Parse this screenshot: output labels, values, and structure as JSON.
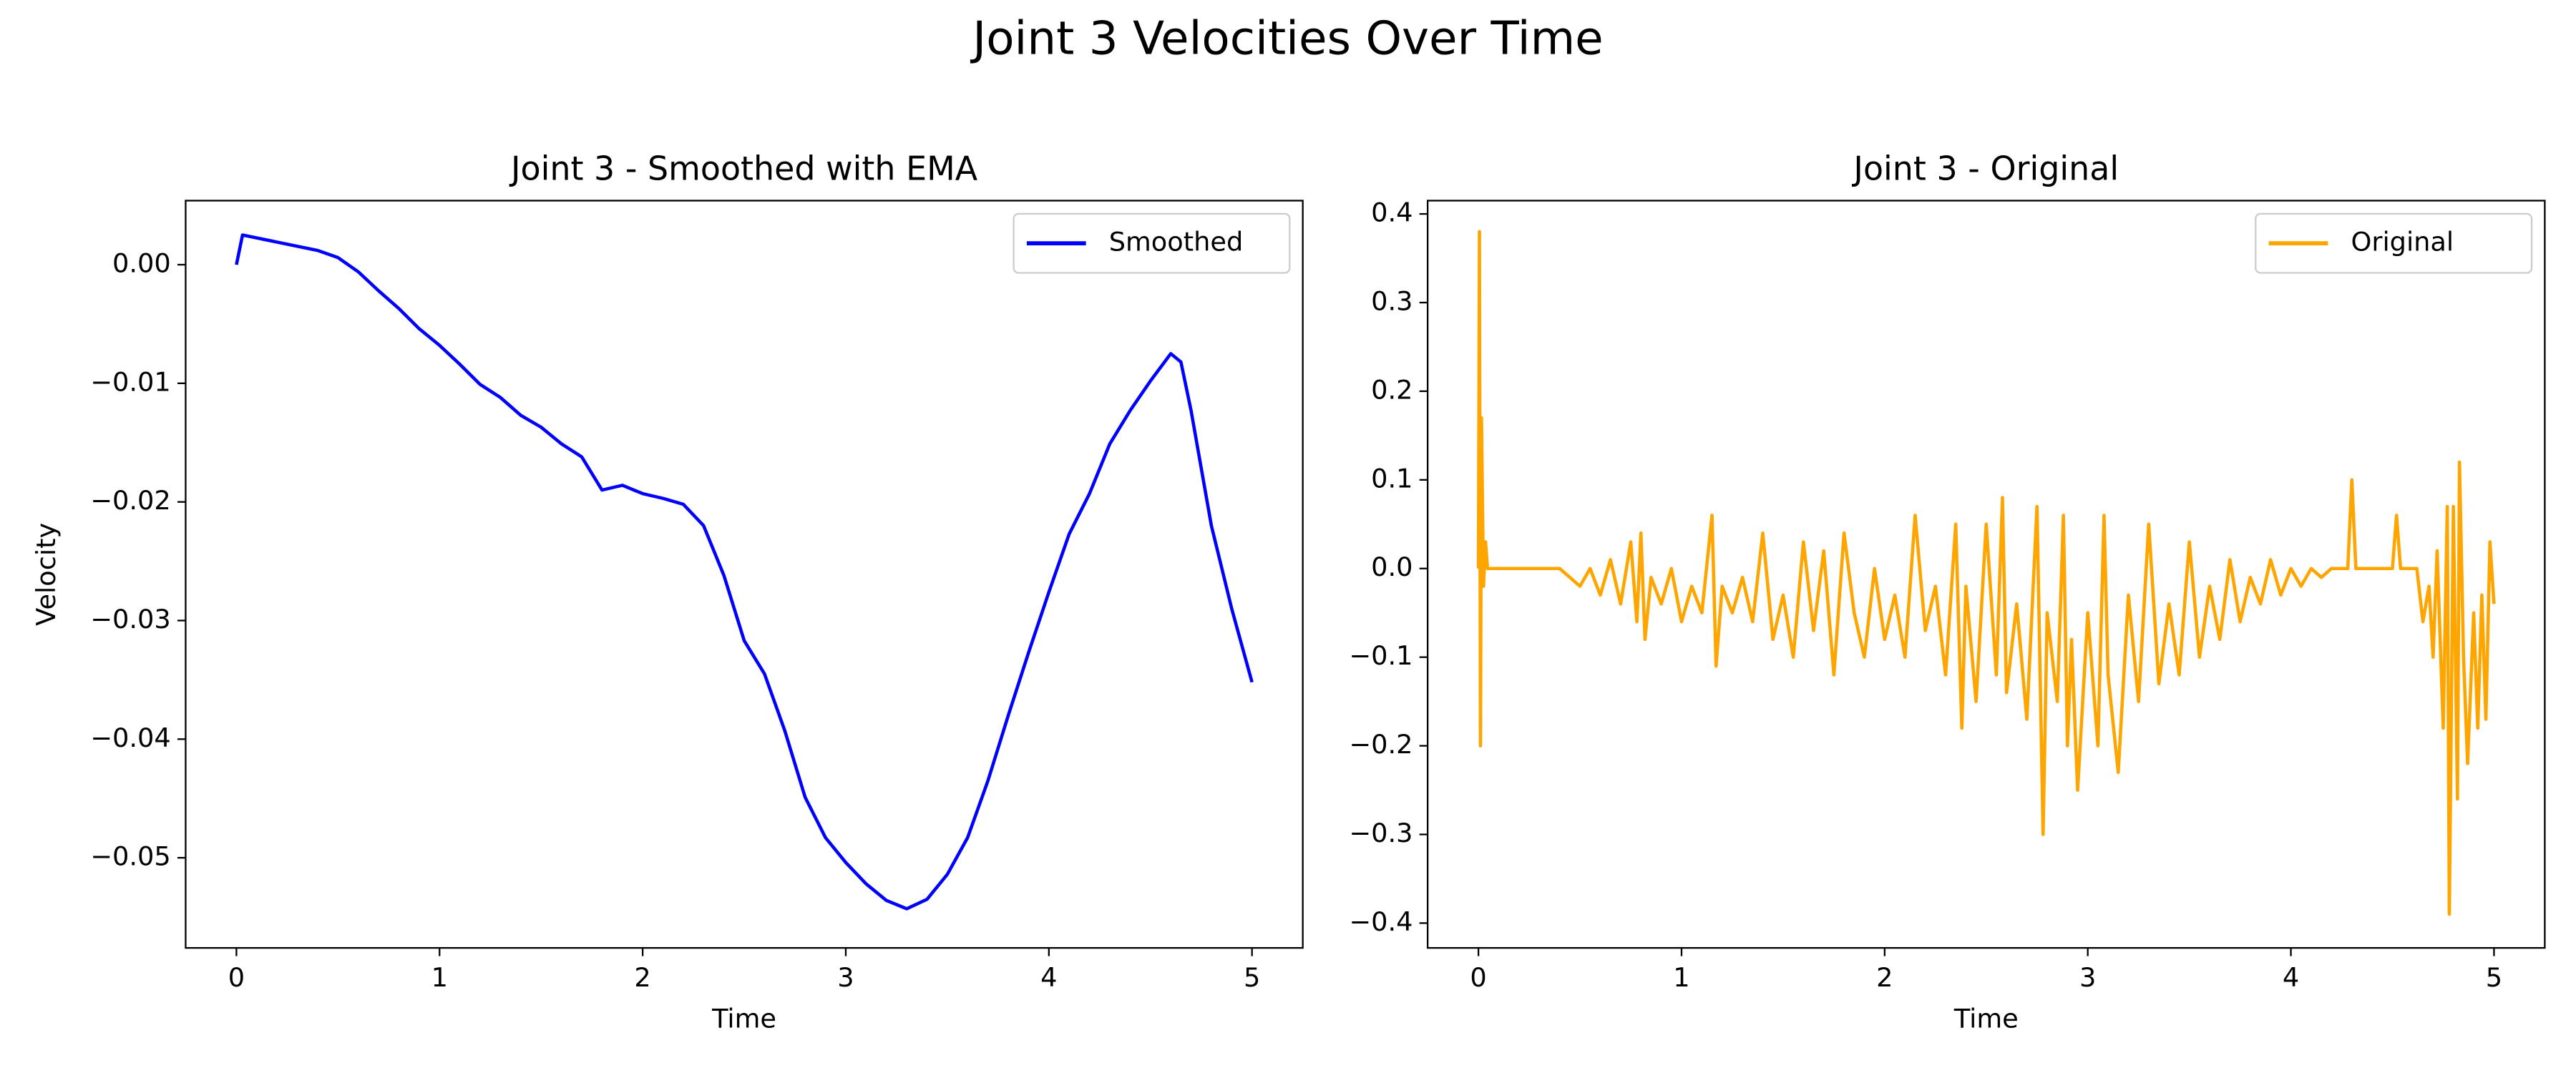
{
  "figure_title": "Joint 3 Velocities Over Time",
  "chart_data": [
    {
      "type": "line",
      "title": "Joint 3 - Smoothed with EMA",
      "xlabel": "Time",
      "ylabel": "Velocity",
      "x": [
        0,
        0.03,
        0.4,
        0.5,
        0.6,
        0.7,
        0.8,
        0.9,
        1.0,
        1.1,
        1.2,
        1.3,
        1.4,
        1.5,
        1.6,
        1.7,
        1.8,
        1.9,
        2.0,
        2.1,
        2.2,
        2.3,
        2.4,
        2.5,
        2.6,
        2.7,
        2.8,
        2.9,
        3.0,
        3.1,
        3.2,
        3.3,
        3.4,
        3.5,
        3.6,
        3.7,
        3.8,
        3.9,
        4.0,
        4.1,
        4.2,
        4.3,
        4.4,
        4.5,
        4.6,
        4.65,
        4.7,
        4.8,
        4.9,
        5.0
      ],
      "series": [
        {
          "name": "Smoothed",
          "color": "#0000ff",
          "values": [
            0.0,
            0.0025,
            0.0012,
            0.0006,
            -0.0006,
            -0.0022,
            -0.0037,
            -0.0054,
            -0.0068,
            -0.0084,
            -0.0101,
            -0.0112,
            -0.0127,
            -0.0137,
            -0.0151,
            -0.0162,
            -0.019,
            -0.0186,
            -0.0193,
            -0.0197,
            -0.0202,
            -0.022,
            -0.0262,
            -0.0317,
            -0.0345,
            -0.0393,
            -0.0449,
            -0.0483,
            -0.0504,
            -0.0522,
            -0.0536,
            -0.0543,
            -0.0535,
            -0.0514,
            -0.0483,
            -0.0435,
            -0.038,
            -0.0327,
            -0.0276,
            -0.0227,
            -0.0193,
            -0.0151,
            -0.0123,
            -0.0098,
            -0.0075,
            -0.0082,
            -0.0123,
            -0.022,
            -0.029,
            -0.0352
          ]
        }
      ],
      "xlim": [
        -0.25,
        5.25
      ],
      "xticks": [
        0,
        1,
        2,
        3,
        4,
        5
      ],
      "ylim": [
        -0.0576,
        0.0054
      ],
      "yticks": [
        {
          "value": -0.05,
          "label": "−0.05"
        },
        {
          "value": -0.04,
          "label": "−0.04"
        },
        {
          "value": -0.03,
          "label": "−0.03"
        },
        {
          "value": -0.02,
          "label": "−0.02"
        },
        {
          "value": -0.01,
          "label": "−0.01"
        },
        {
          "value": 0,
          "label": "0.00"
        }
      ],
      "legend": "upper right"
    },
    {
      "type": "line",
      "title": "Joint 3 - Original",
      "xlabel": "Time",
      "x": [
        0,
        0.005,
        0.01,
        0.015,
        0.025,
        0.035,
        0.045,
        0.4,
        0.45,
        0.5,
        0.55,
        0.6,
        0.65,
        0.7,
        0.75,
        0.78,
        0.8,
        0.82,
        0.85,
        0.9,
        0.95,
        1.0,
        1.05,
        1.1,
        1.15,
        1.17,
        1.2,
        1.25,
        1.3,
        1.35,
        1.4,
        1.45,
        1.5,
        1.55,
        1.6,
        1.65,
        1.7,
        1.75,
        1.8,
        1.85,
        1.9,
        1.95,
        2.0,
        2.05,
        2.1,
        2.15,
        2.2,
        2.25,
        2.3,
        2.35,
        2.38,
        2.4,
        2.45,
        2.5,
        2.55,
        2.58,
        2.6,
        2.65,
        2.7,
        2.75,
        2.78,
        2.8,
        2.85,
        2.88,
        2.9,
        2.92,
        2.95,
        3.0,
        3.05,
        3.08,
        3.1,
        3.15,
        3.2,
        3.25,
        3.3,
        3.35,
        3.4,
        3.45,
        3.5,
        3.55,
        3.6,
        3.65,
        3.7,
        3.75,
        3.8,
        3.85,
        3.9,
        3.95,
        4.0,
        4.05,
        4.1,
        4.15,
        4.2,
        4.28,
        4.3,
        4.32,
        4.5,
        4.52,
        4.54,
        4.62,
        4.65,
        4.68,
        4.7,
        4.72,
        4.75,
        4.77,
        4.78,
        4.8,
        4.82,
        4.83,
        4.85,
        4.87,
        4.9,
        4.92,
        4.94,
        4.96,
        4.98,
        5.0
      ],
      "series": [
        {
          "name": "Original",
          "color": "#ffa500",
          "values": [
            0,
            0.38,
            -0.2,
            0.17,
            -0.02,
            0.03,
            0,
            0,
            -0.01,
            -0.02,
            0.0,
            -0.03,
            0.01,
            -0.04,
            0.03,
            -0.06,
            0.04,
            -0.08,
            -0.01,
            -0.04,
            0.0,
            -0.06,
            -0.02,
            -0.05,
            0.06,
            -0.11,
            -0.02,
            -0.05,
            -0.01,
            -0.06,
            0.04,
            -0.08,
            -0.03,
            -0.1,
            0.03,
            -0.07,
            0.02,
            -0.12,
            0.04,
            -0.05,
            -0.1,
            0.0,
            -0.08,
            -0.03,
            -0.1,
            0.06,
            -0.07,
            -0.02,
            -0.12,
            0.05,
            -0.18,
            -0.02,
            -0.15,
            0.05,
            -0.12,
            0.08,
            -0.14,
            -0.04,
            -0.17,
            0.07,
            -0.3,
            -0.05,
            -0.15,
            0.06,
            -0.2,
            -0.08,
            -0.25,
            -0.05,
            -0.2,
            0.06,
            -0.12,
            -0.23,
            -0.03,
            -0.15,
            0.05,
            -0.13,
            -0.04,
            -0.12,
            0.03,
            -0.1,
            -0.02,
            -0.08,
            0.01,
            -0.06,
            -0.01,
            -0.04,
            0.01,
            -0.03,
            0.0,
            -0.02,
            0.0,
            -0.01,
            0.0,
            0.0,
            0.1,
            0.0,
            0.0,
            0.06,
            0.0,
            0.0,
            -0.06,
            -0.02,
            -0.1,
            0.02,
            -0.18,
            0.07,
            -0.39,
            0.07,
            -0.26,
            0.12,
            -0.1,
            -0.22,
            -0.05,
            -0.18,
            -0.03,
            -0.17,
            0.03,
            -0.04
          ]
        }
      ],
      "xlim": [
        -0.25,
        5.25
      ],
      "xticks": [
        0,
        1,
        2,
        3,
        4,
        5
      ],
      "ylim": [
        -0.428,
        0.415
      ],
      "yticks": [
        {
          "value": -0.4,
          "label": "−0.4"
        },
        {
          "value": -0.3,
          "label": "−0.3"
        },
        {
          "value": -0.2,
          "label": "−0.2"
        },
        {
          "value": -0.1,
          "label": "−0.1"
        },
        {
          "value": 0,
          "label": "0.0"
        },
        {
          "value": 0.1,
          "label": "0.1"
        },
        {
          "value": 0.2,
          "label": "0.2"
        },
        {
          "value": 0.3,
          "label": "0.3"
        },
        {
          "value": 0.4,
          "label": "0.4"
        }
      ],
      "legend": "upper right"
    }
  ]
}
